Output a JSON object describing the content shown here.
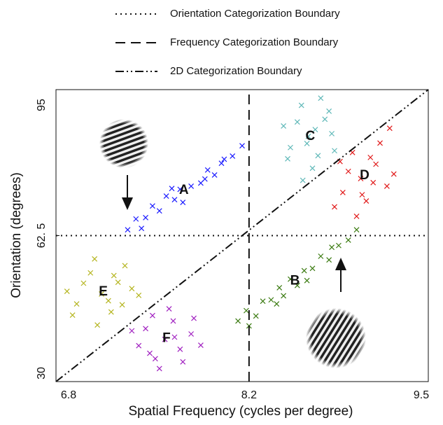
{
  "chart_data": {
    "type": "scatter",
    "xlabel": "Spatial Frequency (cycles per degree)",
    "ylabel": "Orientation (degrees)",
    "xlim": [
      6.8,
      9.5
    ],
    "ylim": [
      30,
      95
    ],
    "xticks": [
      6.8,
      8.2,
      9.5
    ],
    "yticks": [
      30,
      {
        "value": 62.5,
        "label": "62. 5"
      },
      95
    ],
    "boundaries": [
      {
        "name": "Orientation Categorization Boundary",
        "style": "dotted",
        "x": [
          6.8,
          9.5
        ],
        "y": [
          62.5,
          62.5
        ]
      },
      {
        "name": "Frequency Categorization Boundary",
        "style": "dashed",
        "x": [
          8.2,
          8.2
        ],
        "y": [
          30,
          95
        ]
      },
      {
        "name": "2D Categorization Boundary",
        "style": "dashdot",
        "x": [
          6.8,
          9.5
        ],
        "y": [
          30,
          95
        ]
      }
    ],
    "series": [
      {
        "label": "A",
        "color": "#1a1aff",
        "x": [
          7.32,
          7.38,
          7.45,
          7.5,
          7.55,
          7.6,
          7.66,
          7.7,
          7.72,
          7.78,
          7.85,
          7.9,
          7.95,
          8.02,
          8.08,
          8.15,
          7.42,
          7.64,
          7.88,
          8.0
        ],
        "y": [
          63.8,
          66.2,
          66.5,
          69.1,
          68,
          71.3,
          70.5,
          72.8,
          69.9,
          73.5,
          74.2,
          77.1,
          76,
          79.5,
          80.2,
          82.5,
          64.1,
          73,
          75.1,
          78.6
        ]
      },
      {
        "label": "B",
        "color": "#3a7a10",
        "x": [
          8.12,
          8.18,
          8.25,
          8.3,
          8.36,
          8.42,
          8.45,
          8.5,
          8.55,
          8.6,
          8.66,
          8.72,
          8.78,
          8.85,
          8.92,
          8.98,
          8.2,
          8.4,
          8.62,
          8.8
        ],
        "y": [
          43.5,
          45.8,
          44.6,
          47.9,
          48.2,
          50.9,
          49.1,
          52.8,
          51.4,
          54.7,
          55.2,
          57.9,
          57.1,
          60.3,
          61.5,
          63.8,
          42.4,
          47.3,
          52.5,
          59.9
        ]
      },
      {
        "label": "C",
        "color": "#5fb8b8",
        "x": [
          8.63,
          8.5,
          8.75,
          8.58,
          8.7,
          8.45,
          8.8,
          8.66,
          8.55,
          8.72,
          8.62,
          8.48,
          8.78,
          8.68,
          8.59,
          8.82
        ],
        "y": [
          84.6,
          82.1,
          88.4,
          91.5,
          80.3,
          86.9,
          85.2,
          77.5,
          87.8,
          93.1,
          83,
          79.6,
          90.2,
          86.1,
          74.8,
          81.4
        ]
      },
      {
        "label": "D",
        "color": "#e01818",
        "x": [
          9.01,
          8.88,
          9.12,
          8.95,
          9.2,
          8.82,
          9.05,
          9.15,
          8.92,
          9.08,
          9.25,
          8.98,
          9.1,
          8.86,
          9.22,
          9.02
        ],
        "y": [
          75.2,
          72.1,
          78.4,
          81,
          73.5,
          68.9,
          70.2,
          83.1,
          76.8,
          79.9,
          76.2,
          66.8,
          74.3,
          79,
          86.4,
          71.6
        ]
      },
      {
        "label": "E",
        "color": "#b5b520",
        "x": [
          7.13,
          6.95,
          7.25,
          7.05,
          7.2,
          7.35,
          6.88,
          7.1,
          7.3,
          7.0,
          7.18,
          7.28,
          7.08,
          6.92,
          7.22,
          7.4
        ],
        "y": [
          49.5,
          47.3,
          52.1,
          54.2,
          45.5,
          50.7,
          50.1,
          42.6,
          55.8,
          51.9,
          48,
          47.1,
          57.3,
          44.8,
          53.6,
          49.2
        ]
      },
      {
        "label": "F",
        "color": "#a020c0",
        "x": [
          7.59,
          7.45,
          7.7,
          7.52,
          7.65,
          7.4,
          7.78,
          7.55,
          7.62,
          7.48,
          7.72,
          7.8,
          7.35,
          7.66,
          7.5,
          7.85
        ],
        "y": [
          39.4,
          41.8,
          37.2,
          35.1,
          43.5,
          38,
          40.6,
          32.9,
          46.2,
          36.3,
          34.4,
          44.1,
          41.3,
          39.9,
          44.7,
          38.1
        ]
      }
    ]
  }
}
